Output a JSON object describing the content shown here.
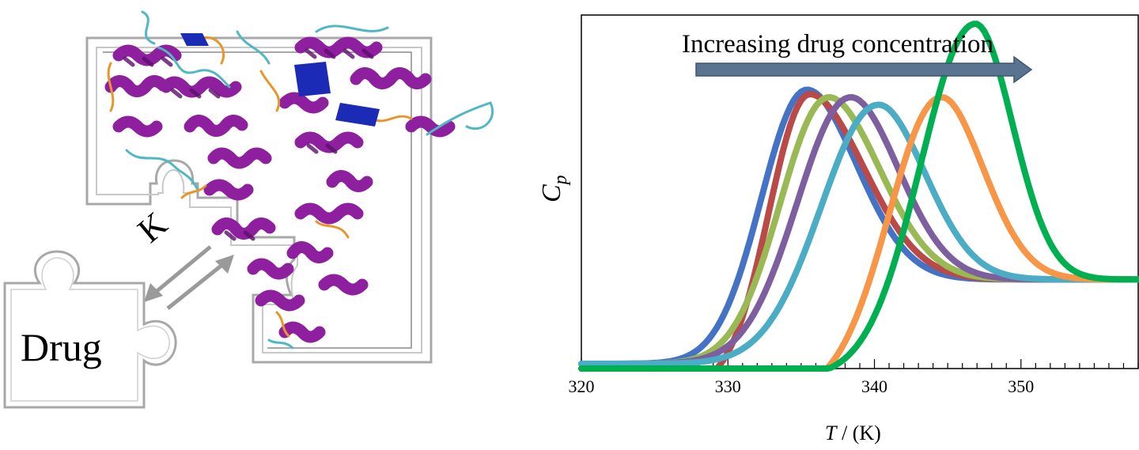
{
  "illustration": {
    "drug_label": "Drug",
    "binding_constant_label": "K",
    "protein_colors": {
      "helix": "#8e1f9e",
      "helix_dark": "#5c0f6b",
      "coil_cyan": "#4fb8c4",
      "coil_orange": "#e8962a",
      "strand_blue": "#1c2bb5",
      "outline": "#a8a8a8",
      "arrows": "#9a9a9a"
    }
  },
  "chart_data": {
    "type": "line",
    "title": "",
    "annotation": "Increasing drug concentration",
    "xlabel_var": "T",
    "xlabel_unit": " / (K)",
    "ylabel_var": "C",
    "ylabel_sub": "p",
    "xlim": [
      320,
      358
    ],
    "ylim": [
      0,
      1.0
    ],
    "xticks": [
      320,
      330,
      340,
      350
    ],
    "grid": false,
    "legend": "none",
    "arrow_color": "#5a7390",
    "series": [
      {
        "color": "#4472c4",
        "baseline": 0.0,
        "peak_x": 335.4,
        "peak_y": 0.806,
        "w_left": 4.3,
        "w_right": 4.9,
        "tail": 0.248
      },
      {
        "color": "#b94a48",
        "baseline": -0.07,
        "peak_x": 335.6,
        "peak_y": 0.793,
        "w_left": 3.8,
        "w_right": 5.3,
        "tail": 0.248
      },
      {
        "color": "#98b954",
        "baseline": 0.0,
        "peak_x": 336.9,
        "peak_y": 0.784,
        "w_left": 4.6,
        "w_right": 5.0,
        "tail": 0.248
      },
      {
        "color": "#7d5fa0",
        "baseline": 0.0,
        "peak_x": 338.4,
        "peak_y": 0.784,
        "w_left": 5.1,
        "w_right": 4.7,
        "tail": 0.248
      },
      {
        "color": "#4aacc5",
        "baseline": 0.0,
        "peak_x": 340.3,
        "peak_y": 0.762,
        "w_left": 5.5,
        "w_right": 4.6,
        "tail": 0.248
      },
      {
        "color": "#f79646",
        "baseline": -0.09,
        "peak_x": 344.6,
        "peak_y": 0.784,
        "w_left": 5.0,
        "w_right": 4.2,
        "tail": 0.248
      },
      {
        "color": "#00b050",
        "baseline": -0.04,
        "peak_x": 346.9,
        "peak_y": 1.0,
        "w_left": 5.2,
        "w_right": 3.7,
        "tail": 0.248
      }
    ]
  }
}
